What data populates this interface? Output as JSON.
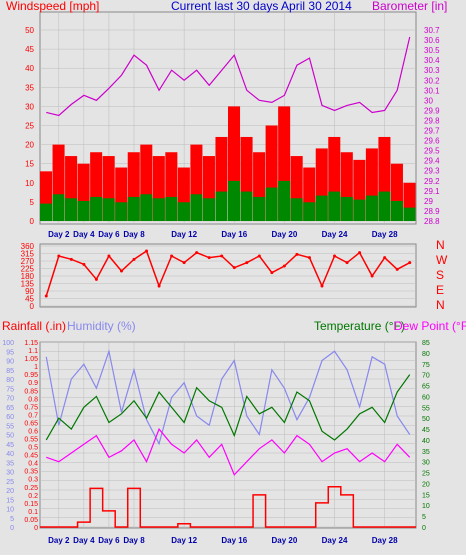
{
  "chart_data": [
    {
      "type": "line",
      "title": "Current last 30 days April 30 2014",
      "left_axis_label": "Windspeed [mph]",
      "right_axis_label": "Barometer [in]",
      "left_ticks": [
        "0",
        "5",
        "10",
        "15",
        "20",
        "25",
        "30",
        "35",
        "40",
        "45",
        "50"
      ],
      "right_ticks": [
        "28.8",
        "28.9",
        "29",
        "29.1",
        "29.2",
        "29.3",
        "29.4",
        "29.5",
        "29.6",
        "29.7",
        "29.8",
        "29.9",
        "30",
        "30.1",
        "30.2",
        "30.3",
        "30.4",
        "30.5",
        "30.6",
        "30.7"
      ],
      "ylim_left": [
        0,
        50
      ],
      "ylim_right": [
        28.8,
        30.7
      ],
      "x_labels": [
        "Day 2",
        "Day 4",
        "Day 6",
        "Day 8",
        "Day 12",
        "Day 16",
        "Day 20",
        "Day 24",
        "Day 28"
      ],
      "x_label_days": [
        2,
        4,
        6,
        8,
        12,
        16,
        20,
        24,
        28
      ],
      "xlim_days": [
        0.5,
        30.5
      ],
      "series": [
        {
          "name": "Windspeed [mph]",
          "color": "#ff0000",
          "x": [
            1,
            2,
            3,
            4,
            5,
            6,
            7,
            8,
            9,
            10,
            11,
            12,
            13,
            14,
            15,
            16,
            17,
            18,
            19,
            20,
            21,
            22,
            23,
            24,
            25,
            26,
            27,
            28,
            29,
            30
          ],
          "values": [
            13,
            20,
            17,
            15,
            18,
            17,
            14,
            18,
            20,
            17,
            18,
            14,
            20,
            17,
            22,
            30,
            22,
            18,
            25,
            30,
            17,
            14,
            19,
            22,
            18,
            16,
            19,
            22,
            15,
            10
          ]
        },
        {
          "name": "Barometer [in]",
          "color": "#cc00cc",
          "x": [
            1,
            2,
            3,
            4,
            5,
            6,
            7,
            8,
            9,
            10,
            11,
            12,
            13,
            14,
            15,
            16,
            17,
            18,
            19,
            20,
            21,
            22,
            23,
            24,
            25,
            26,
            27,
            28,
            29,
            30
          ],
          "values": [
            29.88,
            29.85,
            29.96,
            30.05,
            30.0,
            30.12,
            30.25,
            30.45,
            30.35,
            30.1,
            30.3,
            30.2,
            30.3,
            30.15,
            30.3,
            30.45,
            30.1,
            30.0,
            29.98,
            30.05,
            30.35,
            30.42,
            29.95,
            29.9,
            29.95,
            29.98,
            29.88,
            29.9,
            30.1,
            30.63
          ]
        }
      ]
    },
    {
      "type": "scatter",
      "title": "",
      "right_axis_labels": [
        "N",
        "W",
        "S",
        "E",
        "N"
      ],
      "left_ticks": [
        "0",
        "45",
        "90",
        "135",
        "180",
        "225",
        "270",
        "315",
        "360"
      ],
      "ylim": [
        0,
        360
      ],
      "x_labels": [],
      "series": [
        {
          "name": "",
          "color": "#ff0000",
          "x": [
            1,
            2,
            3,
            4,
            5,
            6,
            7,
            8,
            9,
            10,
            11,
            12,
            13,
            14,
            15,
            16,
            17,
            18,
            19,
            20,
            21,
            22,
            23,
            24,
            25,
            26,
            27,
            28,
            29,
            30
          ],
          "values": [
            60,
            300,
            280,
            250,
            160,
            300,
            210,
            280,
            330,
            120,
            300,
            260,
            320,
            290,
            300,
            230,
            260,
            300,
            200,
            240,
            310,
            290,
            120,
            300,
            260,
            320,
            180,
            290,
            220,
            260
          ]
        }
      ]
    },
    {
      "type": "line",
      "title": "",
      "left_axis_label_rain": "Rainfall (.in)",
      "left_axis_label_humidity": "Humidity (%)",
      "right_axis_label_temp": "Temperature (°F)",
      "right_axis_label_dew": "Dew Point (°F)",
      "rain_ticks": [
        "0",
        "0.05",
        "0.1",
        "0.15",
        "0.2",
        "0.25",
        "0.3",
        "0.35",
        "0.4",
        "0.45",
        "0.5",
        "0.55",
        "0.6",
        "0.65",
        "0.7",
        "0.75",
        "0.8",
        "0.85",
        "0.9",
        "0.95",
        "1",
        "1.05",
        "1.1",
        "1.15"
      ],
      "humidity_ticks": [
        "0",
        "5",
        "10",
        "15",
        "20",
        "25",
        "30",
        "35",
        "40",
        "45",
        "50",
        "55",
        "60",
        "65",
        "70",
        "75",
        "80",
        "85",
        "90",
        "95",
        "100"
      ],
      "temp_ticks": [
        "0",
        "5",
        "10",
        "15",
        "20",
        "25",
        "30",
        "35",
        "40",
        "45",
        "50",
        "55",
        "60",
        "65",
        "70",
        "75",
        "80",
        "85"
      ],
      "ylim_rain": [
        0,
        1.15
      ],
      "ylim_humidity": [
        0,
        100
      ],
      "ylim_temp": [
        0,
        85
      ],
      "x_labels": [
        "Day 2",
        "Day 4",
        "Day 6",
        "Day 8",
        "Day 12",
        "Day 16",
        "Day 20",
        "Day 24",
        "Day 28"
      ],
      "series": [
        {
          "name": "Rainfall (.in)",
          "color": "#ff0000",
          "x": [
            1,
            2,
            3,
            4,
            5,
            6,
            7,
            8,
            9,
            10,
            11,
            12,
            13,
            14,
            15,
            16,
            17,
            18,
            19,
            20,
            21,
            22,
            23,
            24,
            25,
            26,
            27,
            28,
            29,
            30
          ],
          "values": [
            0,
            0,
            0,
            0.03,
            0.24,
            0.1,
            0,
            0.24,
            0,
            0,
            0,
            0.02,
            0,
            0,
            0,
            0,
            0,
            0.2,
            0,
            0,
            0,
            0,
            0.15,
            0.25,
            0.2,
            0,
            0,
            0,
            0,
            0
          ]
        },
        {
          "name": "Humidity (%)",
          "color": "#8888ee",
          "x": [
            1,
            2,
            3,
            4,
            5,
            6,
            7,
            8,
            9,
            10,
            11,
            12,
            13,
            14,
            15,
            16,
            17,
            18,
            19,
            20,
            21,
            22,
            23,
            24,
            25,
            26,
            27,
            28,
            29,
            30
          ],
          "values": [
            92,
            55,
            80,
            88,
            75,
            95,
            62,
            85,
            58,
            45,
            70,
            78,
            60,
            55,
            80,
            90,
            60,
            50,
            85,
            75,
            58,
            70,
            90,
            95,
            85,
            65,
            92,
            88,
            60,
            50
          ]
        },
        {
          "name": "Temperature (°F)",
          "color": "#007700",
          "x": [
            1,
            2,
            3,
            4,
            5,
            6,
            7,
            8,
            9,
            10,
            11,
            12,
            13,
            14,
            15,
            16,
            17,
            18,
            19,
            20,
            21,
            22,
            23,
            24,
            25,
            26,
            27,
            28,
            29,
            30
          ],
          "values": [
            40,
            50,
            45,
            55,
            60,
            48,
            52,
            58,
            50,
            62,
            55,
            48,
            64,
            58,
            55,
            42,
            60,
            52,
            55,
            48,
            62,
            58,
            44,
            40,
            45,
            52,
            55,
            48,
            62,
            70
          ]
        },
        {
          "name": "Dew Point (°F)",
          "color": "#ff00ff",
          "x": [
            1,
            2,
            3,
            4,
            5,
            6,
            7,
            8,
            9,
            10,
            11,
            12,
            13,
            14,
            15,
            16,
            17,
            18,
            19,
            20,
            21,
            22,
            23,
            24,
            25,
            26,
            27,
            28,
            29,
            30
          ],
          "values": [
            32,
            30,
            34,
            38,
            42,
            32,
            35,
            40,
            30,
            45,
            38,
            34,
            40,
            32,
            38,
            24,
            30,
            36,
            40,
            34,
            42,
            38,
            30,
            34,
            36,
            30,
            34,
            30,
            38,
            32
          ]
        }
      ]
    }
  ]
}
